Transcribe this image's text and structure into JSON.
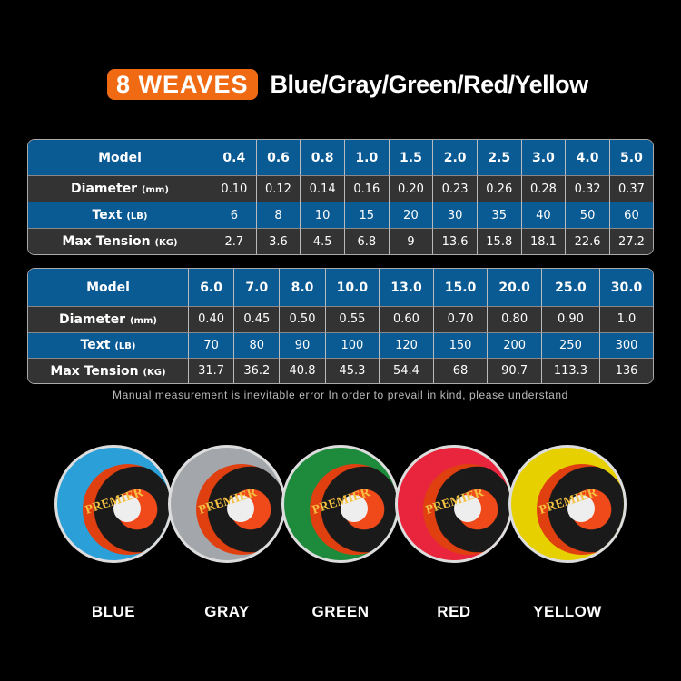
{
  "title": {
    "badge": "8 WEAVES",
    "colors": "Blue/Gray/Green/Red/Yellow"
  },
  "table1": {
    "labels": {
      "model": "Model",
      "diameter": "Diameter",
      "diameter_unit": "(mm)",
      "text": "Text",
      "text_unit": "(LB)",
      "tension": "Max Tension",
      "tension_unit": "(KG)"
    },
    "model": [
      "0.4",
      "0.6",
      "0.8",
      "1.0",
      "1.5",
      "2.0",
      "2.5",
      "3.0",
      "4.0",
      "5.0"
    ],
    "diameter": [
      "0.10",
      "0.12",
      "0.14",
      "0.16",
      "0.20",
      "0.23",
      "0.26",
      "0.28",
      "0.32",
      "0.37"
    ],
    "text": [
      "6",
      "8",
      "10",
      "15",
      "20",
      "30",
      "35",
      "40",
      "50",
      "60"
    ],
    "tension": [
      "2.7",
      "3.6",
      "4.5",
      "6.8",
      "9",
      "13.6",
      "15.8",
      "18.1",
      "22.6",
      "27.2"
    ]
  },
  "table2": {
    "labels": {
      "model": "Model",
      "diameter": "Diameter",
      "diameter_unit": "(mm)",
      "text": "Text",
      "text_unit": "(LB)",
      "tension": "Max Tension",
      "tension_unit": "(KG)"
    },
    "model": [
      "6.0",
      "7.0",
      "8.0",
      "10.0",
      "13.0",
      "15.0",
      "20.0",
      "25.0",
      "30.0"
    ],
    "diameter": [
      "0.40",
      "0.45",
      "0.50",
      "0.55",
      "0.60",
      "0.70",
      "0.80",
      "0.90",
      "1.0"
    ],
    "text": [
      "70",
      "80",
      "90",
      "100",
      "120",
      "150",
      "200",
      "250",
      "300"
    ],
    "tension": [
      "31.7",
      "36.2",
      "40.8",
      "45.3",
      "54.4",
      "68",
      "90.7",
      "113.3",
      "136"
    ]
  },
  "note": "Manual measurement is inevitable error In order to prevail in kind, please understand",
  "spools": [
    {
      "name": "BLUE",
      "color": "#2a9fd8",
      "brand": "PREMIER"
    },
    {
      "name": "GRAY",
      "color": "#a3a7ab",
      "brand": "PREMIER"
    },
    {
      "name": "GREEN",
      "color": "#1e8a3c",
      "brand": "PREMIER"
    },
    {
      "name": "RED",
      "color": "#e8253c",
      "brand": "PREMIER"
    },
    {
      "name": "YELLOW",
      "color": "#e6d000",
      "brand": "PREMIER"
    }
  ]
}
